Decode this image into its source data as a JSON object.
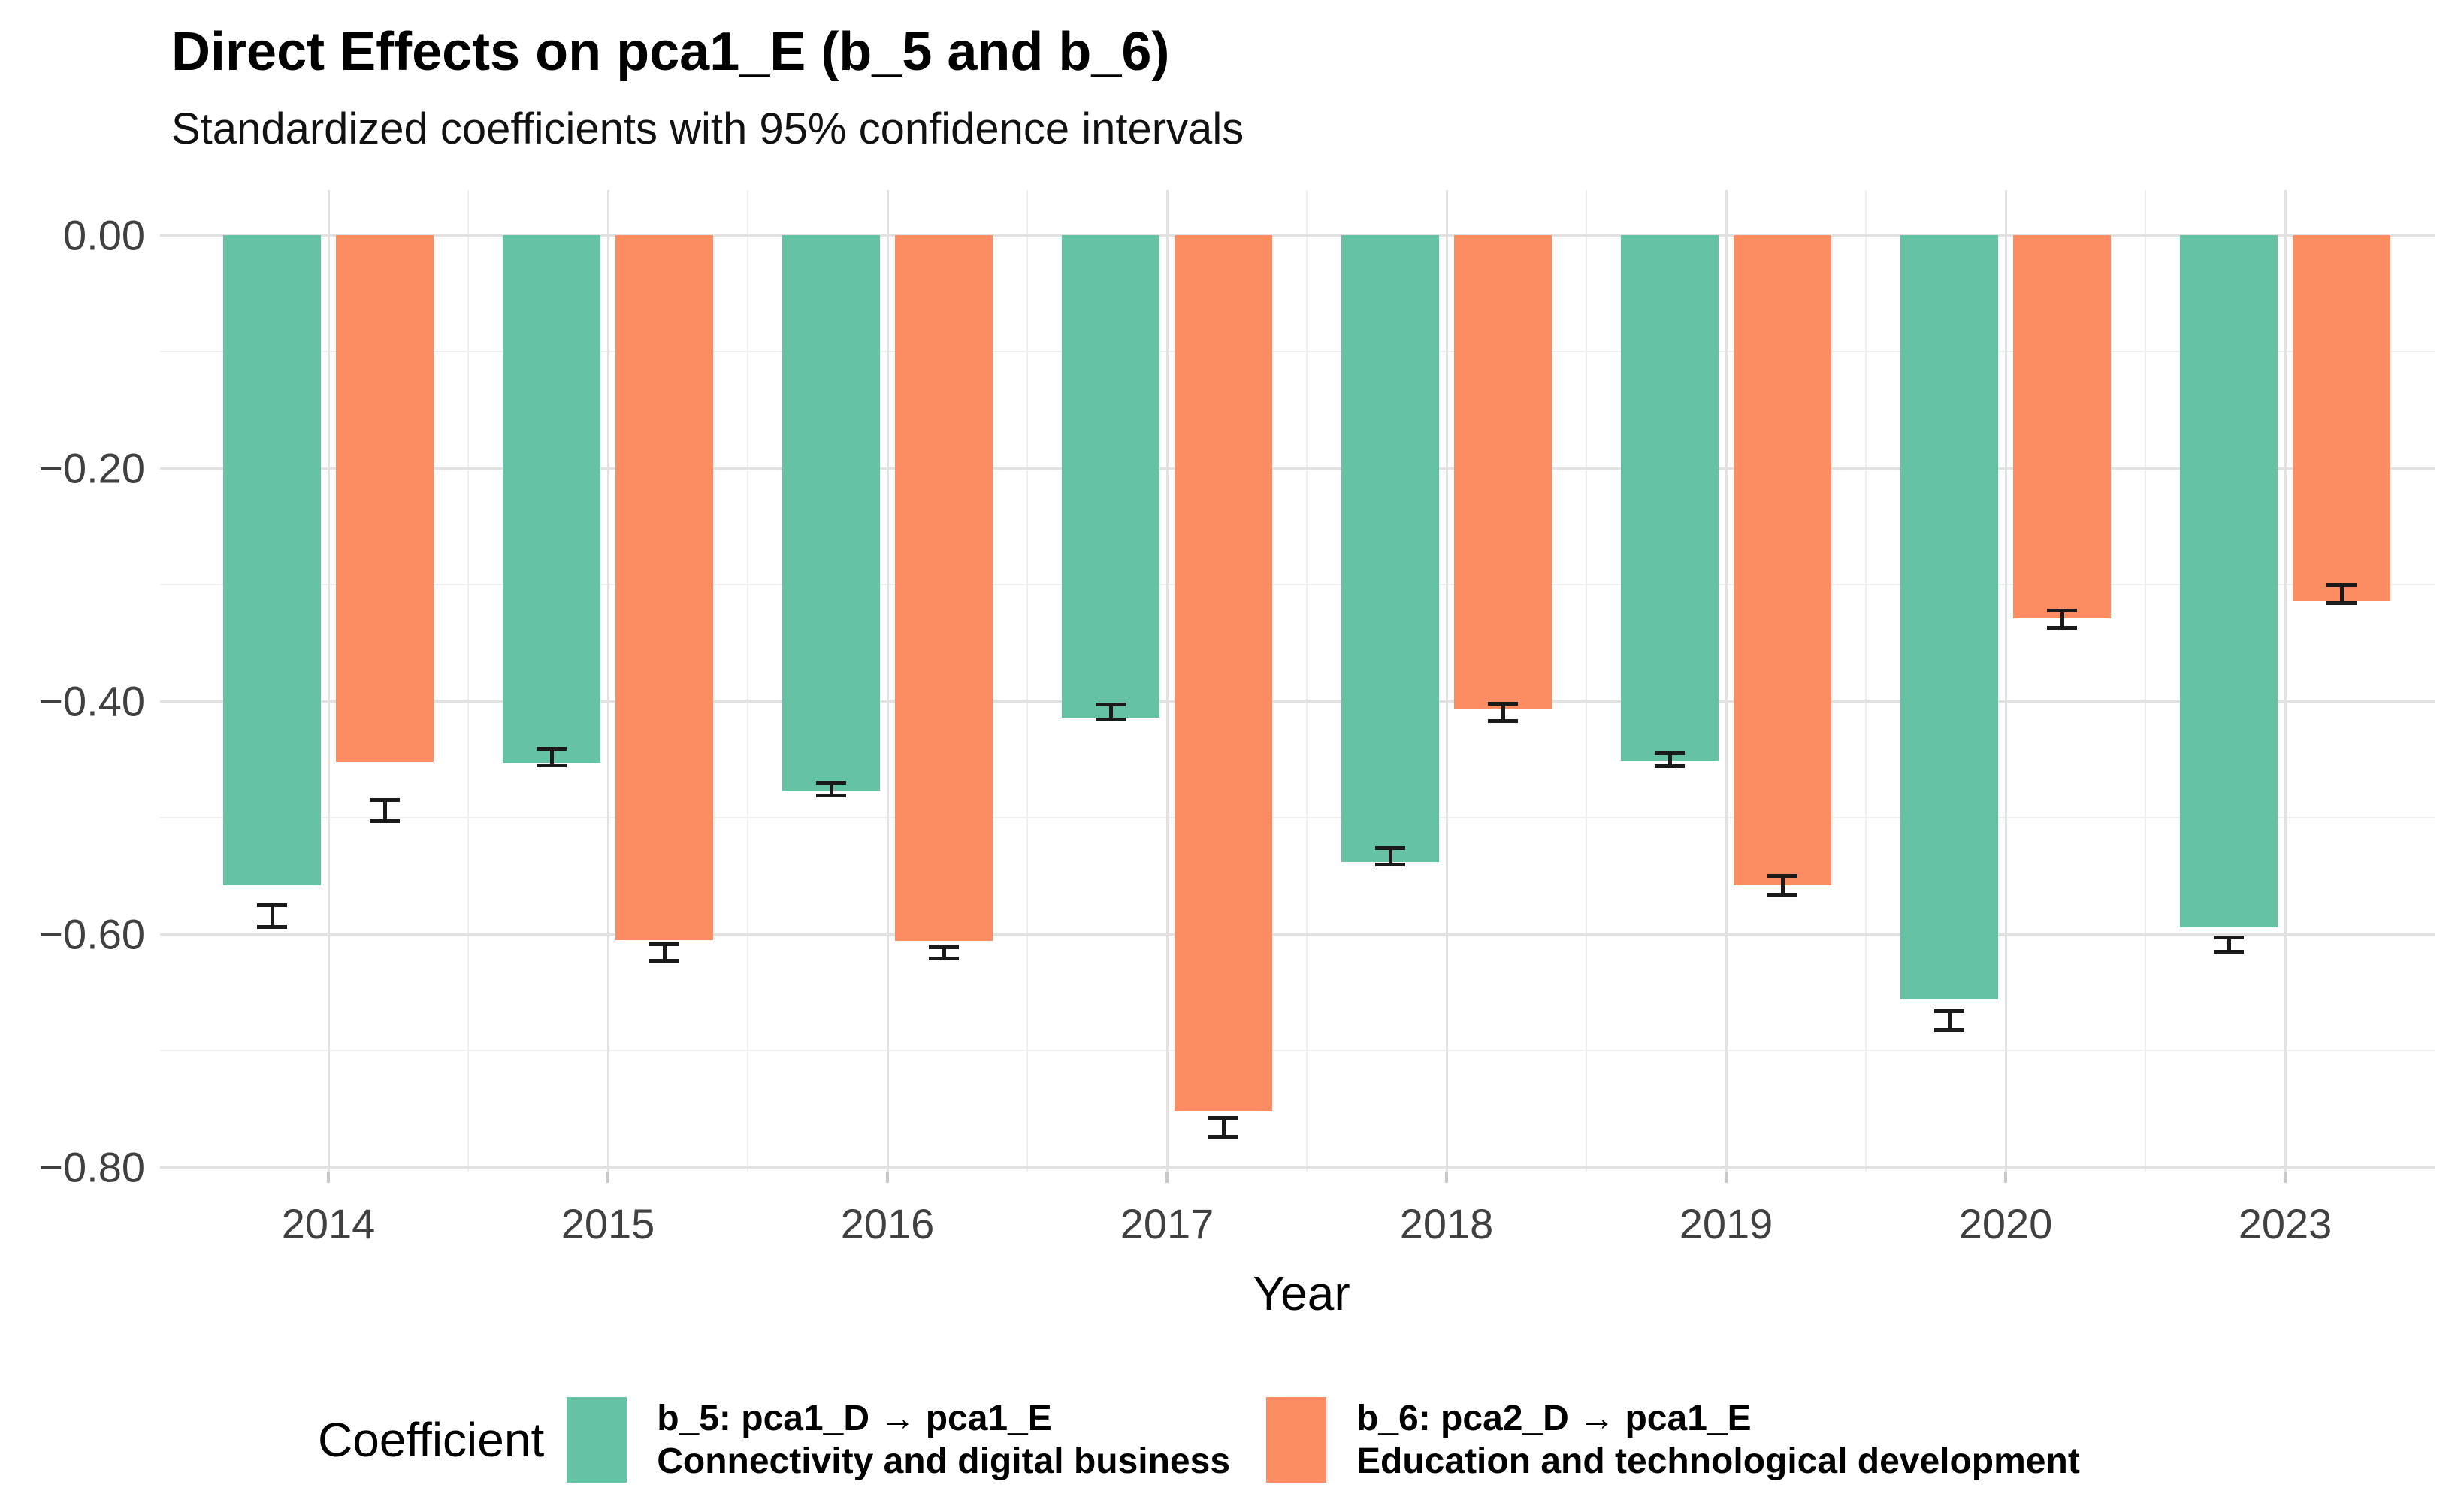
{
  "title": "Direct Effects on pca1_E (b_5 and b_6)",
  "subtitle": "Standardized coefficients with 95% confidence intervals",
  "colors": {
    "series_b5": "#66C2A5",
    "series_b6": "#FC8D62",
    "grid_major": "#e2e2e2",
    "grid_minor": "#efefef",
    "axis_text": "#404040",
    "error_bar": "#1a1a1a",
    "background": "#ffffff"
  },
  "chart_data": {
    "type": "bar",
    "title": "Direct Effects on pca1_E (b_5 and b_6)",
    "subtitle": "Standardized coefficients with 95% confidence intervals",
    "xlabel": "Year",
    "ylabel": "",
    "categories": [
      "2014",
      "2015",
      "2016",
      "2017",
      "2018",
      "2019",
      "2020",
      "2023"
    ],
    "yticks": [
      0.0,
      -0.2,
      -0.4,
      -0.6,
      -0.8
    ],
    "ytick_labels": [
      "0.00",
      "−0.20",
      "−0.40",
      "−0.60",
      "−0.80"
    ],
    "ylim": [
      -0.84,
      0.04
    ],
    "grid": true,
    "legend_position": "bottom",
    "legend_title": "Coefficient",
    "error_bars": "95% confidence intervals",
    "series": [
      {
        "name": "b_5: pca1_D → pca1_E",
        "description": "Connectivity and digital business",
        "color": "#66C2A5",
        "values": [
          -0.558,
          -0.453,
          -0.477,
          -0.414,
          -0.538,
          -0.451,
          -0.656,
          -0.594
        ],
        "ci_low": [
          -0.594,
          -0.455,
          -0.481,
          -0.416,
          -0.54,
          -0.456,
          -0.682,
          -0.615
        ],
        "ci_high": [
          -0.575,
          -0.441,
          -0.47,
          -0.403,
          -0.526,
          -0.445,
          -0.666,
          -0.603
        ]
      },
      {
        "name": "b_6: pca2_D → pca1_E",
        "description": "Education and technological development",
        "color": "#FC8D62",
        "values": [
          -0.452,
          -0.605,
          -0.606,
          -0.752,
          -0.407,
          -0.558,
          -0.329,
          -0.314
        ],
        "ci_low": [
          -0.503,
          -0.623,
          -0.621,
          -0.774,
          -0.417,
          -0.566,
          -0.337,
          -0.316
        ],
        "ci_high": [
          -0.485,
          -0.609,
          -0.611,
          -0.758,
          -0.402,
          -0.55,
          -0.322,
          -0.3
        ]
      }
    ]
  }
}
